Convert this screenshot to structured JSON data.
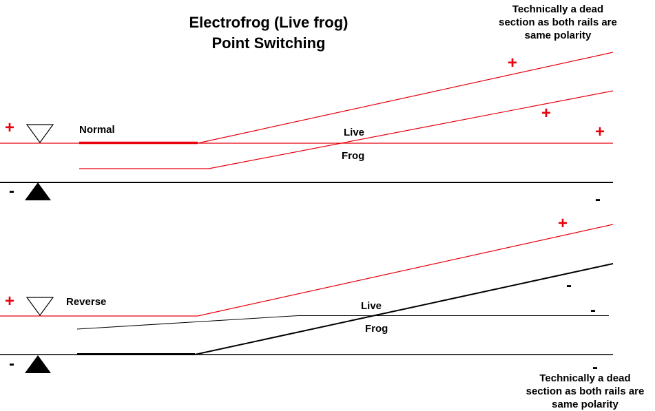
{
  "title": {
    "line1": "Electrofrog (Live frog)",
    "line2": "Point Switching"
  },
  "notes": {
    "top": [
      "Technically a dead",
      "section as both rails are",
      "same polarity"
    ],
    "bottom": [
      "Technically a dead",
      "section as both rails are",
      "same polarity"
    ]
  },
  "normal": {
    "label": "Normal",
    "live": "Live",
    "frog": "Frog"
  },
  "reverse": {
    "label": "Reverse",
    "live": "Live",
    "frog": "Frog"
  },
  "symbols": {
    "plus": "+",
    "minus": "-"
  },
  "colors": {
    "positive": "#e8000d",
    "negative": "#000000",
    "background": "#ffffff"
  }
}
